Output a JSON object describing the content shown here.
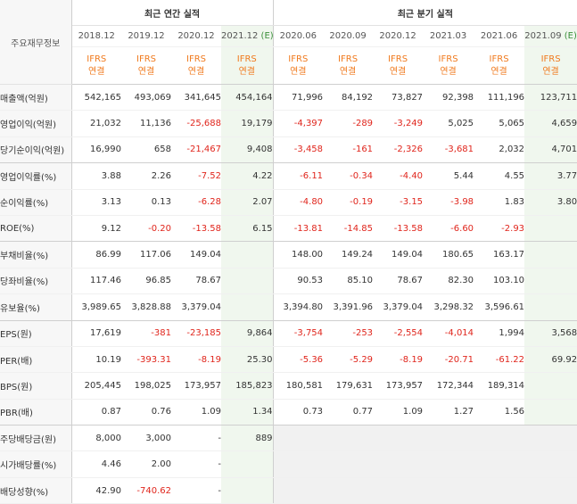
{
  "header": {
    "corner_label": "주요재무정보",
    "annual_title": "최근 연간 실적",
    "quarter_title": "최근 분기 실적",
    "annual_periods": [
      "2018.12",
      "2019.12",
      "2020.12",
      "2021.12"
    ],
    "estimate_tag": "(E)",
    "quarter_periods": [
      "2020.06",
      "2020.09",
      "2020.12",
      "2021.03",
      "2021.06",
      "2021.09"
    ],
    "ifrs_line1": "IFRS",
    "ifrs_line2": "연결"
  },
  "rows": [
    {
      "label": "매출액(억원)",
      "values": [
        "542,165",
        "493,069",
        "341,645",
        "454,164",
        "71,996",
        "84,192",
        "73,827",
        "92,398",
        "111,196",
        "123,711"
      ]
    },
    {
      "label": "영업이익(억원)",
      "values": [
        "21,032",
        "11,136",
        "-25,688",
        "19,179",
        "-4,397",
        "-289",
        "-3,249",
        "5,025",
        "5,065",
        "4,659"
      ]
    },
    {
      "label": "당기순이익(억원)",
      "values": [
        "16,990",
        "658",
        "-21,467",
        "9,408",
        "-3,458",
        "-161",
        "-2,326",
        "-3,681",
        "2,032",
        "4,701"
      ]
    },
    {
      "label": "영업이익률(%)",
      "values": [
        "3.88",
        "2.26",
        "-7.52",
        "4.22",
        "-6.11",
        "-0.34",
        "-4.40",
        "5.44",
        "4.55",
        "3.77"
      ]
    },
    {
      "label": "순이익률(%)",
      "values": [
        "3.13",
        "0.13",
        "-6.28",
        "2.07",
        "-4.80",
        "-0.19",
        "-3.15",
        "-3.98",
        "1.83",
        "3.80"
      ]
    },
    {
      "label": "ROE(%)",
      "values": [
        "9.12",
        "-0.20",
        "-13.58",
        "6.15",
        "-13.81",
        "-14.85",
        "-13.58",
        "-6.60",
        "-2.93",
        ""
      ]
    },
    {
      "label": "부채비율(%)",
      "values": [
        "86.99",
        "117.06",
        "149.04",
        "",
        "148.00",
        "149.24",
        "149.04",
        "180.65",
        "163.17",
        ""
      ]
    },
    {
      "label": "당좌비율(%)",
      "values": [
        "117.46",
        "96.85",
        "78.67",
        "",
        "90.53",
        "85.10",
        "78.67",
        "82.30",
        "103.10",
        ""
      ]
    },
    {
      "label": "유보율(%)",
      "values": [
        "3,989.65",
        "3,828.88",
        "3,379.04",
        "",
        "3,394.80",
        "3,391.96",
        "3,379.04",
        "3,298.32",
        "3,596.61",
        ""
      ]
    },
    {
      "label": "EPS(원)",
      "values": [
        "17,619",
        "-381",
        "-23,185",
        "9,864",
        "-3,754",
        "-253",
        "-2,554",
        "-4,014",
        "1,994",
        "3,568"
      ]
    },
    {
      "label": "PER(배)",
      "values": [
        "10.19",
        "-393.31",
        "-8.19",
        "25.30",
        "-5.36",
        "-5.29",
        "-8.19",
        "-20.71",
        "-61.22",
        "69.92"
      ]
    },
    {
      "label": "BPS(원)",
      "values": [
        "205,445",
        "198,025",
        "173,957",
        "185,823",
        "180,581",
        "179,631",
        "173,957",
        "172,344",
        "189,314",
        ""
      ]
    },
    {
      "label": "PBR(배)",
      "values": [
        "0.87",
        "0.76",
        "1.09",
        "1.34",
        "0.73",
        "0.77",
        "1.09",
        "1.27",
        "1.56",
        ""
      ]
    },
    {
      "label": "주당배당금(원)",
      "values": [
        "8,000",
        "3,000",
        "-",
        "889",
        "",
        "",
        "",
        "",
        "",
        ""
      ]
    },
    {
      "label": "시가배당률(%)",
      "values": [
        "4.46",
        "2.00",
        "-",
        "",
        "",
        "",
        "",
        "",
        "",
        ""
      ]
    },
    {
      "label": "배당성향(%)",
      "values": [
        "42.90",
        "-740.62",
        "-",
        "",
        "",
        "",
        "",
        "",
        "",
        ""
      ]
    }
  ]
}
